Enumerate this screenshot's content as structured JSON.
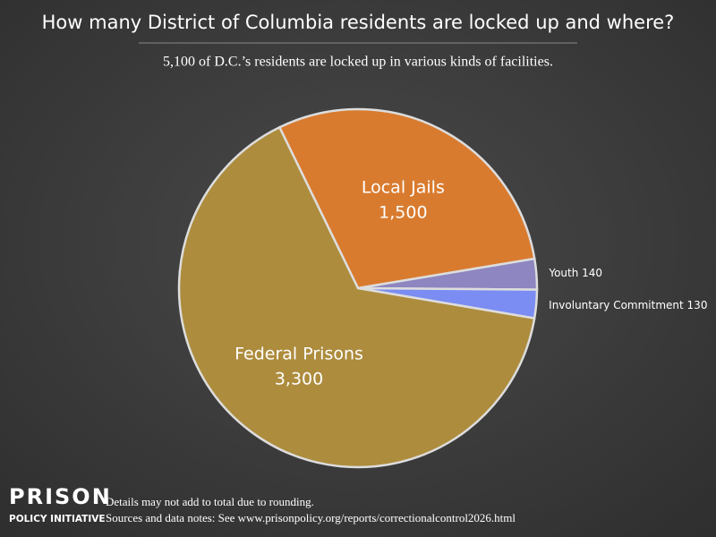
{
  "chart_data": {
    "type": "pie",
    "title": "How many District of Columbia residents are locked up and where?",
    "subtitle": "5,100 of D.C.’s residents are locked up in various kinds of facilities.",
    "categories": [
      "Local Jails",
      "Youth",
      "Involuntary Commitment",
      "Federal Prisons"
    ],
    "values": [
      1500,
      140,
      130,
      3300
    ],
    "value_labels": [
      "1,500",
      "140",
      "130",
      "3,300"
    ],
    "colors": [
      "#d97b2f",
      "#8d86c0",
      "#7b8df2",
      "#ad8c3d"
    ]
  },
  "footer": {
    "logo_top": "PRISON",
    "logo_bottom": "POLICY INITIATIVE",
    "note": "Details may not add to total due to rounding.",
    "sources": "Sources and data notes: See www.prisonpolicy.org/reports/correctionalcontrol2026.html"
  }
}
